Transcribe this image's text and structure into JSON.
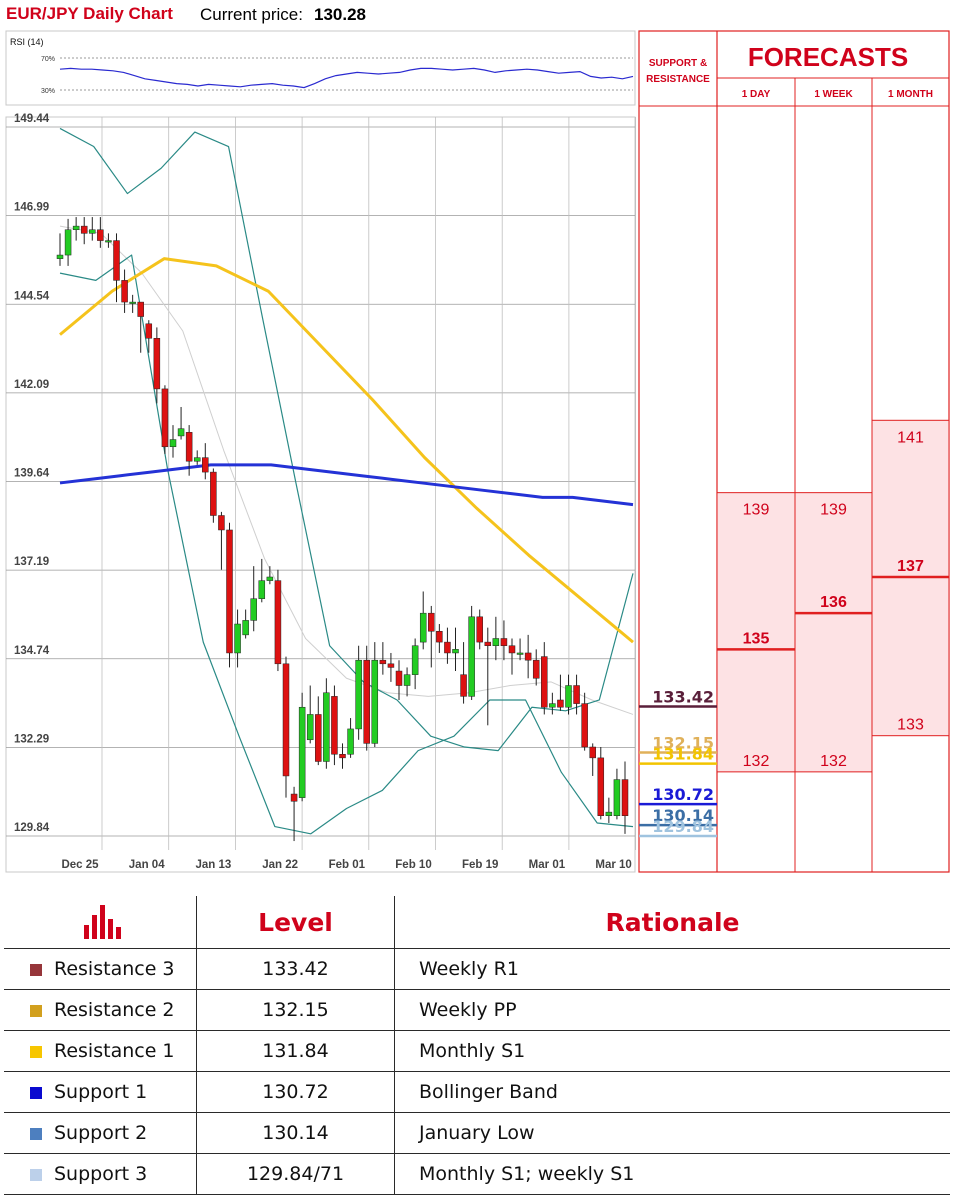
{
  "header": {
    "title": "EUR/JPY Daily Chart",
    "price_label": "Current price:",
    "price_value": "130.28"
  },
  "rsi": {
    "label": "RSI (14)",
    "levels": [
      "70%",
      "30%"
    ],
    "values": [
      56,
      57,
      56,
      56,
      55,
      54,
      52,
      48,
      44,
      42,
      40,
      38,
      37,
      35,
      37,
      36,
      35,
      34,
      36,
      37,
      38,
      36,
      35,
      33,
      38,
      44,
      48,
      50,
      52,
      51,
      50,
      51,
      52,
      55,
      57,
      57,
      56,
      55,
      56,
      57,
      55,
      52,
      54,
      55,
      56,
      55,
      53,
      51,
      52,
      53,
      47,
      45,
      46,
      44,
      47
    ]
  },
  "chart_data": {
    "type": "candlestick",
    "title": "EUR/JPY Daily Chart",
    "ylim": [
      129.0,
      149.6
    ],
    "y_ticks": [
      "149.44",
      "146.99",
      "144.54",
      "142.09",
      "139.64",
      "137.19",
      "134.74",
      "132.29",
      "129.84"
    ],
    "x_ticks": [
      "Dec 25",
      "Jan 04",
      "Jan 13",
      "Jan 22",
      "Feb 01",
      "Feb 10",
      "Feb 19",
      "Mar 01",
      "Mar 10"
    ],
    "grid": true,
    "candles": [
      [
        145.8,
        145.9,
        146.5,
        145.6
      ],
      [
        145.9,
        146.6,
        146.9,
        145.6
      ],
      [
        146.6,
        146.7,
        146.95,
        146.3
      ],
      [
        146.7,
        146.5,
        146.95,
        146.2
      ],
      [
        146.5,
        146.6,
        146.95,
        146.3
      ],
      [
        146.6,
        146.3,
        146.95,
        146.1
      ],
      [
        146.3,
        146.3,
        146.5,
        146.1
      ],
      [
        146.3,
        145.2,
        146.5,
        144.6
      ],
      [
        145.2,
        144.6,
        145.5,
        144.3
      ],
      [
        144.6,
        144.6,
        144.8,
        144.3
      ],
      [
        144.6,
        144.2,
        144.6,
        143.2
      ],
      [
        144.0,
        143.6,
        144.1,
        143.2
      ],
      [
        143.6,
        142.2,
        143.9,
        141.8
      ],
      [
        142.2,
        140.6,
        142.3,
        140.4
      ],
      [
        140.6,
        140.8,
        141.2,
        140.3
      ],
      [
        140.9,
        141.1,
        141.7,
        140.8
      ],
      [
        141.0,
        140.2,
        141.2,
        139.8
      ],
      [
        140.2,
        140.3,
        140.5,
        140.1
      ],
      [
        140.3,
        139.9,
        140.7,
        139.7
      ],
      [
        139.9,
        138.7,
        140.0,
        138.5
      ],
      [
        138.7,
        138.3,
        138.8,
        137.2
      ],
      [
        138.3,
        134.9,
        138.5,
        134.5
      ],
      [
        134.9,
        135.7,
        136.1,
        134.5
      ],
      [
        135.4,
        135.8,
        136.1,
        135.3
      ],
      [
        135.8,
        136.4,
        137.3,
        135.5
      ],
      [
        136.4,
        136.9,
        137.5,
        136.3
      ],
      [
        136.9,
        137.0,
        137.3,
        136.8
      ],
      [
        136.9,
        134.6,
        137.2,
        134.4
      ],
      [
        134.6,
        131.5,
        134.8,
        130.9
      ],
      [
        131.0,
        130.8,
        131.2,
        129.7
      ],
      [
        130.9,
        133.4,
        133.8,
        130.8
      ],
      [
        132.5,
        133.2,
        134.0,
        132.4
      ],
      [
        133.2,
        131.9,
        133.7,
        131.8
      ],
      [
        131.9,
        133.8,
        134.2,
        131.7
      ],
      [
        133.7,
        132.1,
        134.0,
        131.8
      ],
      [
        132.1,
        132.0,
        132.4,
        131.7
      ],
      [
        132.1,
        132.8,
        133.1,
        132.0
      ],
      [
        132.8,
        134.7,
        135.1,
        132.5
      ],
      [
        134.7,
        132.4,
        135.1,
        132.2
      ],
      [
        132.4,
        134.7,
        135.2,
        132.3
      ],
      [
        134.7,
        134.6,
        135.2,
        134.3
      ],
      [
        134.6,
        134.5,
        134.9,
        134.1
      ],
      [
        134.4,
        134.0,
        134.7,
        133.6
      ],
      [
        134.0,
        134.3,
        134.5,
        133.7
      ],
      [
        134.3,
        135.1,
        135.3,
        133.9
      ],
      [
        135.2,
        136.0,
        136.6,
        135.0
      ],
      [
        136.0,
        135.5,
        136.2,
        134.5
      ],
      [
        135.5,
        135.2,
        135.7,
        134.9
      ],
      [
        135.2,
        134.9,
        135.6,
        134.6
      ],
      [
        134.9,
        135.0,
        135.6,
        134.4
      ],
      [
        134.3,
        133.7,
        135.2,
        133.5
      ],
      [
        133.7,
        135.9,
        136.2,
        133.6
      ],
      [
        135.9,
        135.2,
        136.1,
        135.0
      ],
      [
        135.2,
        135.1,
        135.6,
        132.9
      ],
      [
        135.1,
        135.3,
        135.9,
        134.7
      ],
      [
        135.3,
        135.1,
        135.8,
        134.7
      ],
      [
        135.1,
        134.9,
        135.3,
        134.3
      ],
      [
        134.9,
        134.9,
        135.3,
        134.7
      ],
      [
        134.9,
        134.7,
        135.4,
        134.2
      ],
      [
        134.7,
        134.2,
        135.0,
        134.0
      ],
      [
        134.8,
        133.4,
        135.2,
        133.2
      ],
      [
        133.4,
        133.5,
        133.8,
        133.2
      ],
      [
        133.6,
        133.4,
        134.3,
        133.3
      ],
      [
        133.4,
        134.0,
        134.3,
        133.2
      ],
      [
        134.0,
        133.5,
        134.3,
        133.2
      ],
      [
        133.5,
        132.3,
        133.8,
        132.2
      ],
      [
        132.3,
        132.0,
        132.4,
        131.5
      ],
      [
        132.0,
        130.4,
        132.3,
        130.3
      ],
      [
        130.4,
        130.5,
        130.9,
        130.2
      ],
      [
        130.4,
        131.4,
        131.7,
        130.3
      ],
      [
        131.4,
        130.4,
        131.9,
        129.9
      ]
    ],
    "series": [
      {
        "name": "",
        "color": "#2432d6",
        "values": [
          139.6,
          139.7,
          139.8,
          139.9,
          140.0,
          140.1,
          140.1,
          140.1,
          140.0,
          139.9,
          139.8,
          139.7,
          139.6,
          139.5,
          139.4,
          139.3,
          139.2,
          139.2,
          139.1,
          139.0
        ]
      },
      {
        "name": "",
        "color": "#f5c31c",
        "values": [
          143.7,
          144.9,
          145.8,
          145.6,
          144.9,
          143.4,
          141.9,
          140.3,
          138.9,
          137.6,
          136.4,
          135.2
        ]
      },
      {
        "name": "",
        "color": "#2a8a86",
        "values": [
          149.4,
          148.9,
          147.6,
          148.3,
          149.3,
          148.9,
          144.2,
          139.6,
          135.1,
          134.1,
          133.6,
          132.6,
          132.3,
          132.2,
          133.4,
          133.3,
          133.6,
          137.1
        ]
      },
      {
        "name": "",
        "color": "#2a8a86",
        "values": [
          145.4,
          145.2,
          145.9,
          140.0,
          135.2,
          132.6,
          130.1,
          129.9,
          130.6,
          131.1,
          132.2,
          132.6,
          133.6,
          133.6,
          131.6,
          130.2,
          130.1
        ]
      },
      {
        "name": "",
        "color": "#cfcfcf",
        "values": [
          146.7,
          146.5,
          145.4,
          143.8,
          140.5,
          137.5,
          135.3,
          134.2,
          133.8,
          133.7,
          133.8,
          134.0,
          134.1,
          133.6,
          133.2
        ]
      }
    ],
    "levels": [
      {
        "label": "133.42",
        "value": 133.42,
        "color": "#5a1f3a"
      },
      {
        "label": "132.15",
        "value": 132.15,
        "color": "#e0b15a"
      },
      {
        "label": "131.84",
        "value": 131.84,
        "color": "#f2c400"
      },
      {
        "label": "130.72",
        "value": 130.72,
        "color": "#1a1ad6"
      },
      {
        "label": "130.14",
        "value": 130.14,
        "color": "#3b6ea5"
      },
      {
        "label": "129.84",
        "value": 129.84,
        "color": "#9fc3df"
      }
    ]
  },
  "forecasts": {
    "title": "FORECASTS",
    "sr_label": "SUPPORT & RESISTANCE",
    "columns": [
      {
        "label": "1 DAY",
        "high": 139,
        "mid": 135,
        "low": 132
      },
      {
        "label": "1 WEEK",
        "high": 139,
        "mid": 136,
        "low": 132
      },
      {
        "label": "1 MONTH",
        "high": 141,
        "mid": 137,
        "low": 133
      }
    ]
  },
  "levels_table": {
    "headers": [
      "Level",
      "Rationale"
    ],
    "icon": "bar-chart-icon",
    "rows": [
      {
        "name": "Resistance 3",
        "color": "#96353a",
        "level": "133.42",
        "rationale": "Weekly R1"
      },
      {
        "name": "Resistance 2",
        "color": "#d2a01e",
        "level": "132.15",
        "rationale": "Weekly PP"
      },
      {
        "name": "Resistance 1",
        "color": "#f7c600",
        "level": "131.84",
        "rationale": "Monthly  S1"
      },
      {
        "name": "Support 1",
        "color": "#0a0ad0",
        "level": "130.72",
        "rationale": "Bollinger Band"
      },
      {
        "name": "Support 2",
        "color": "#4d7fbf",
        "level": "130.14",
        "rationale": "January Low"
      },
      {
        "name": "Support 3",
        "color": "#bcd0ea",
        "level": "129.84/71",
        "rationale": "Monthly S1; weekly S1"
      }
    ]
  }
}
